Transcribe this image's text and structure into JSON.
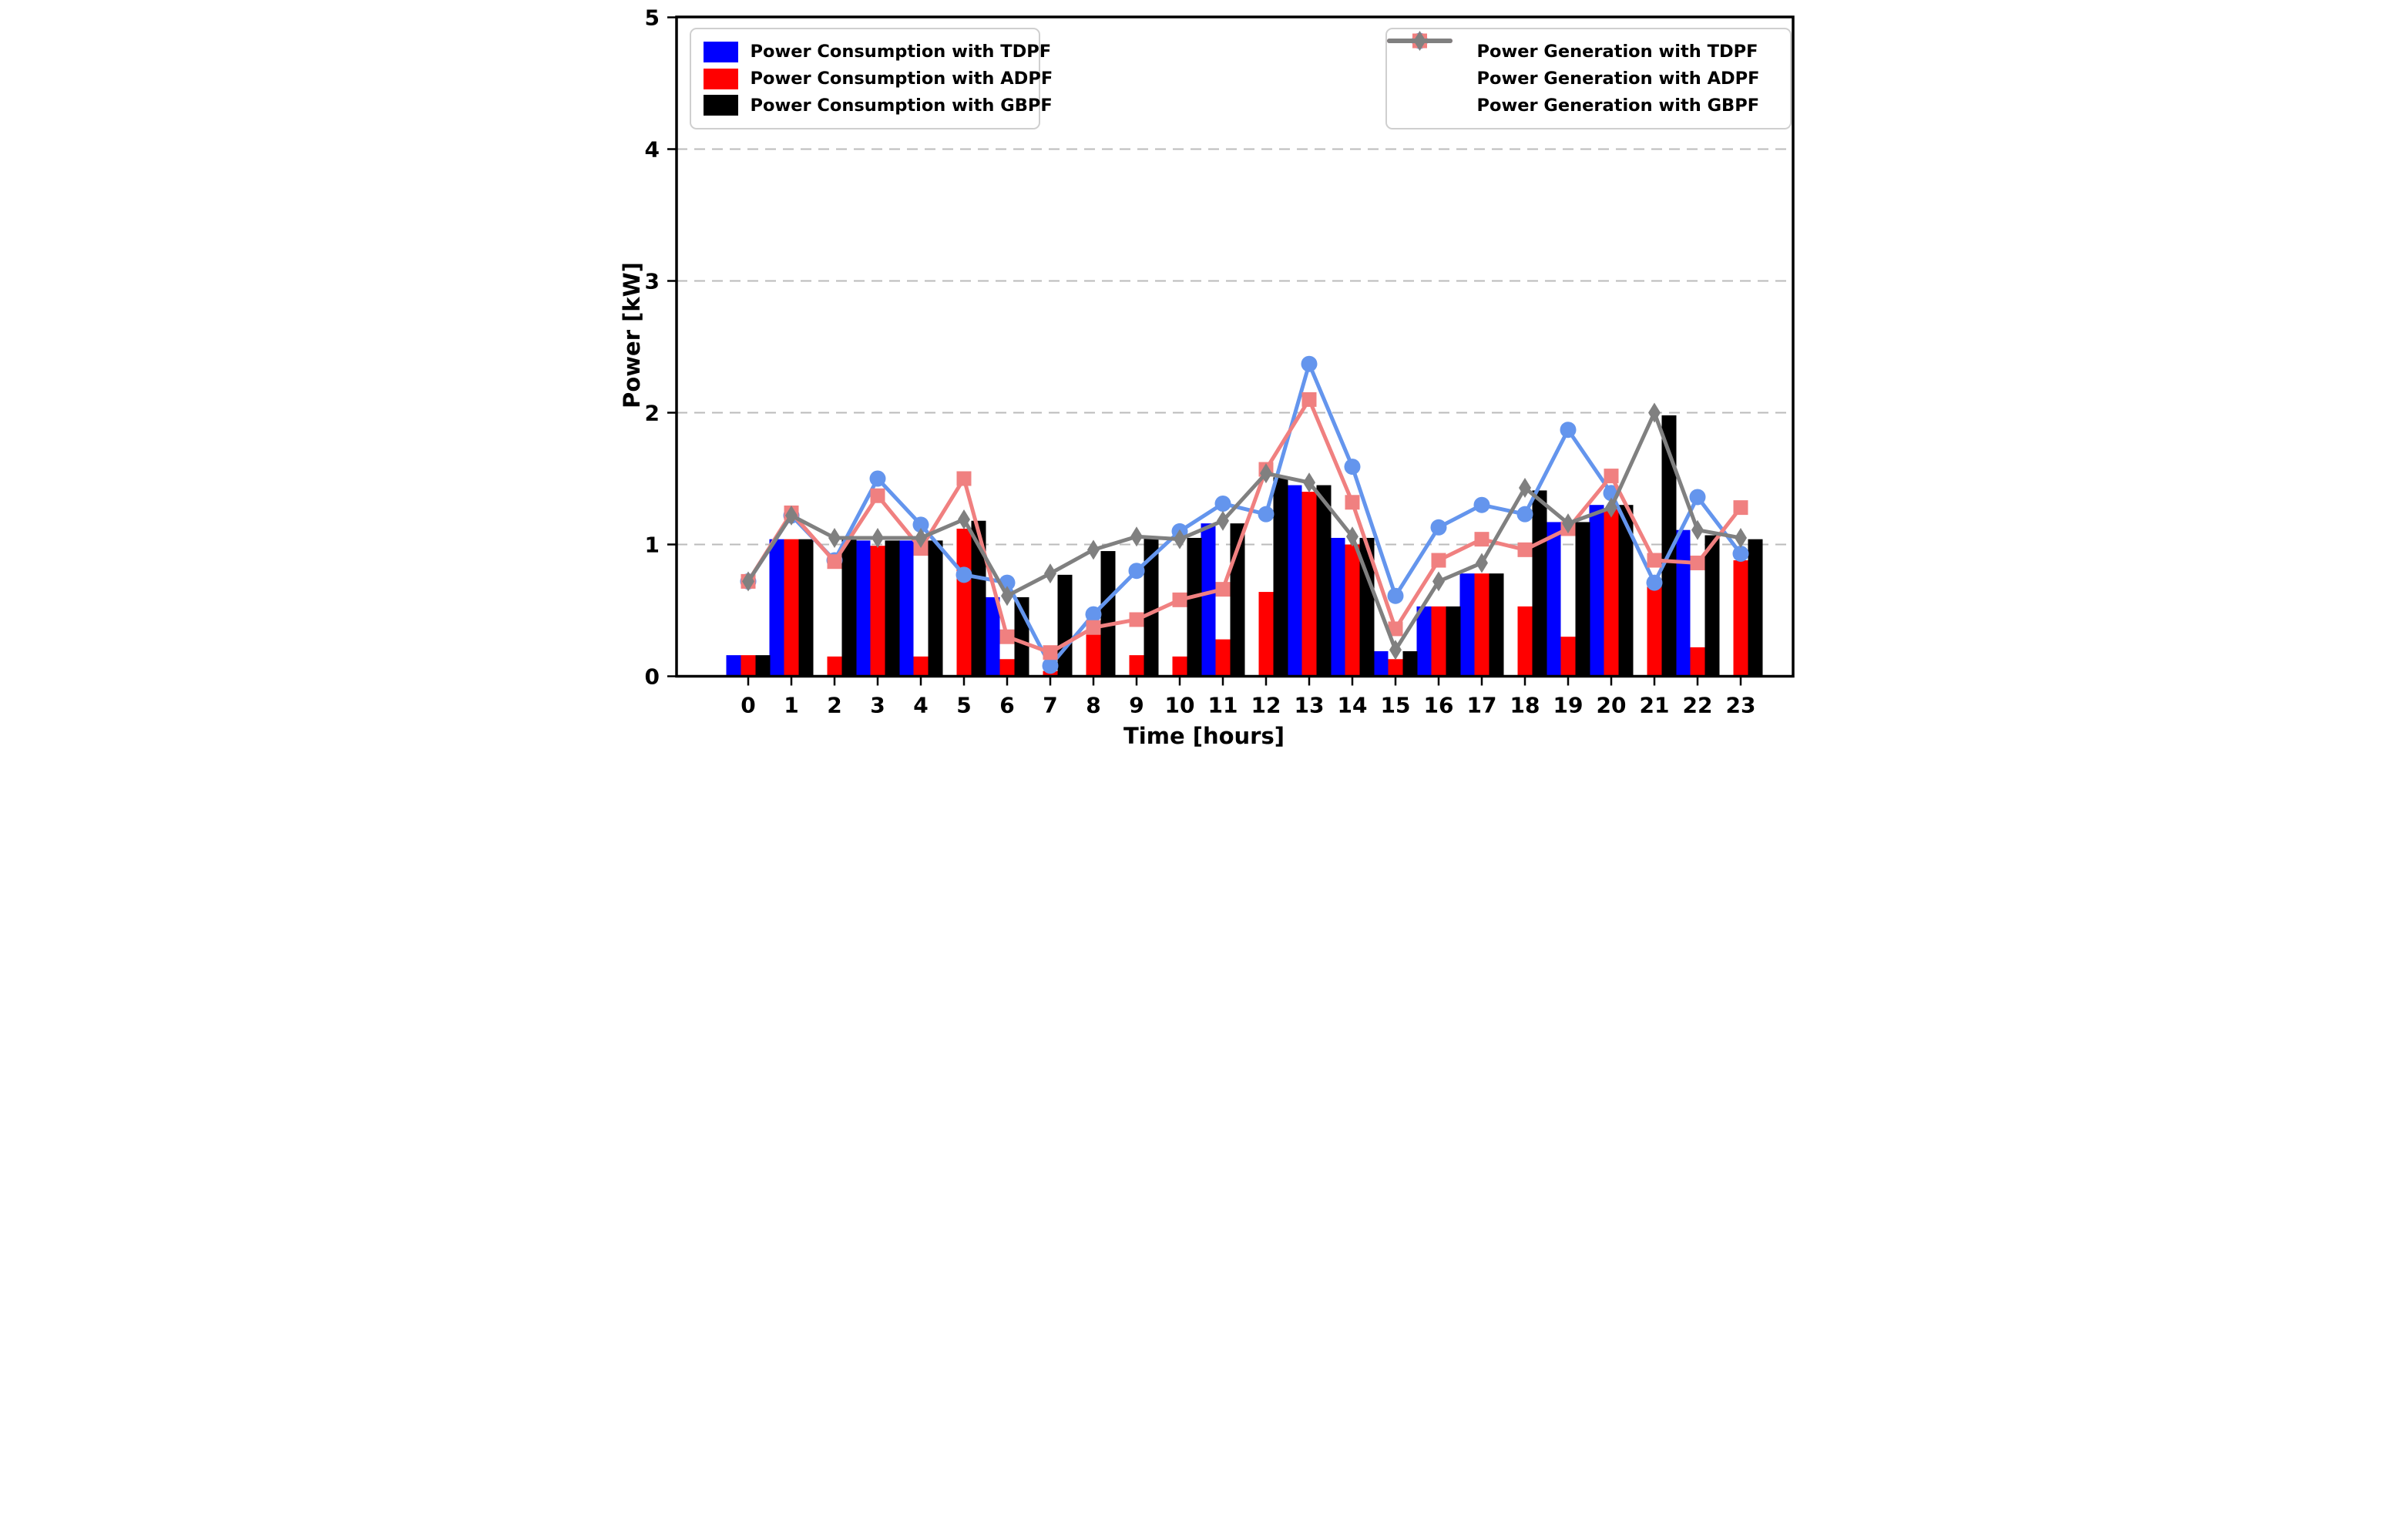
{
  "figure": {
    "xlabel": "Time [hours]",
    "ylabel": "Power [kW]",
    "background_color": "#ffffff",
    "grid_color": "#bbbbbb",
    "spine_color": "#000000"
  },
  "chart_data": {
    "type": "bar+line",
    "title": "",
    "xlabel": "Time [hours]",
    "ylabel": "Power [kW]",
    "categories": [
      "0",
      "1",
      "2",
      "3",
      "4",
      "5",
      "6",
      "7",
      "8",
      "9",
      "10",
      "11",
      "12",
      "13",
      "14",
      "15",
      "16",
      "17",
      "18",
      "19",
      "20",
      "21",
      "22",
      "23"
    ],
    "ylim": [
      0,
      5
    ],
    "yticks": [
      "0",
      "1",
      "2",
      "3",
      "4",
      "5"
    ],
    "grid": "horizontal dashed gridlines at 1,2,3,4",
    "legend_positions": [
      "upper left",
      "upper right"
    ],
    "bar_series": [
      {
        "name": "Power Consumption with TDPF",
        "color": "#0000ff",
        "values": [
          0.16,
          1.04,
          0,
          1.03,
          1.03,
          0,
          0.6,
          0,
          0,
          0,
          0,
          1.16,
          0,
          1.45,
          1.05,
          0.19,
          0.53,
          0.78,
          0,
          1.17,
          1.3,
          0,
          1.11,
          0
        ]
      },
      {
        "name": "Power Consumption with ADPF",
        "color": "#ff0000",
        "values": [
          0.16,
          1.04,
          0.15,
          0.99,
          0.15,
          1.12,
          0.13,
          0.04,
          0.32,
          0.16,
          0.15,
          0.28,
          0.64,
          1.4,
          1.0,
          0.13,
          0.53,
          0.78,
          0.53,
          0.3,
          1.27,
          0.68,
          0.22,
          0.88
        ]
      },
      {
        "name": "Power Consumption with GBPF",
        "color": "#000000",
        "values": [
          0.16,
          1.04,
          1.05,
          1.03,
          1.03,
          1.18,
          0.6,
          0.77,
          0.95,
          1.05,
          1.05,
          1.16,
          1.51,
          1.45,
          1.05,
          0.19,
          0.53,
          0.78,
          1.41,
          1.17,
          1.3,
          1.98,
          1.07,
          1.04
        ]
      }
    ],
    "line_series": [
      {
        "name": "Power Generation with TDPF",
        "color": "#6495ed",
        "marker": "circle",
        "values": [
          0.72,
          1.22,
          0.88,
          1.5,
          1.15,
          0.77,
          0.71,
          0.08,
          0.47,
          0.8,
          1.1,
          1.31,
          1.23,
          2.37,
          1.59,
          0.61,
          1.13,
          1.3,
          1.23,
          1.87,
          1.39,
          0.71,
          1.36,
          0.93
        ]
      },
      {
        "name": "Power Generation with ADPF",
        "color": "#f08080",
        "marker": "square",
        "values": [
          0.72,
          1.24,
          0.87,
          1.37,
          0.97,
          1.5,
          0.3,
          0.18,
          0.37,
          0.43,
          0.58,
          0.66,
          1.57,
          2.1,
          1.32,
          0.36,
          0.88,
          1.04,
          0.96,
          1.12,
          1.52,
          0.88,
          0.86,
          1.28
        ]
      },
      {
        "name": "Power Generation with GBPF",
        "color": "#808080",
        "marker": "diamond",
        "values": [
          0.72,
          1.22,
          1.05,
          1.05,
          1.05,
          1.19,
          0.61,
          0.78,
          0.96,
          1.06,
          1.04,
          1.18,
          1.54,
          1.47,
          1.06,
          0.2,
          0.72,
          0.86,
          1.43,
          1.16,
          1.28,
          2.0,
          1.11,
          1.05
        ]
      }
    ]
  }
}
